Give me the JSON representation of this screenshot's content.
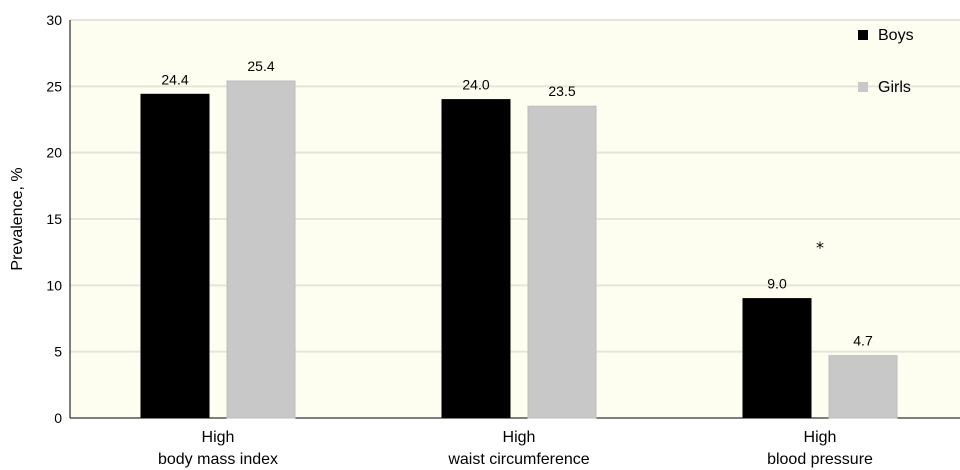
{
  "chart_data": {
    "type": "bar",
    "ylabel": "Prevalence, %",
    "ylim": [
      0,
      30
    ],
    "yticks": [
      "0",
      "5",
      "10",
      "15",
      "20",
      "25",
      "30"
    ],
    "grid": true,
    "legend_position": "top-right",
    "categories": [
      [
        "High",
        "body mass index"
      ],
      [
        "High",
        "waist circumference"
      ],
      [
        "High",
        "blood pressure"
      ]
    ],
    "series": [
      {
        "name": "Boys",
        "color": "#000000",
        "values": [
          24.4,
          24.0,
          9.0
        ],
        "labels": [
          "24.4",
          "24.0",
          "9.0"
        ]
      },
      {
        "name": "Girls",
        "color": "#c8c8c8",
        "values": [
          25.4,
          23.5,
          4.7
        ],
        "labels": [
          "25.4",
          "23.5",
          "4.7"
        ]
      }
    ],
    "annotations": [
      {
        "text": "*",
        "category_index": 2,
        "y": 13.2
      }
    ],
    "plot_background": "#fdfdf0",
    "grid_color": "#e6e6d8"
  }
}
